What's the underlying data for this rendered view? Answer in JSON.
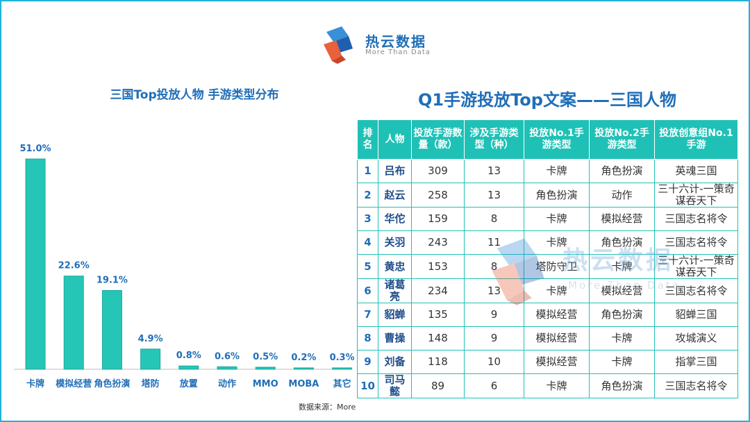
{
  "logo": {
    "name_cn": "热云数据",
    "name_en": "More Than Data"
  },
  "chart_data": {
    "type": "bar",
    "title": "三国Top投放人物 手游类型分布",
    "categories": [
      "卡牌",
      "模拟经营",
      "角色扮演",
      "塔防",
      "放置",
      "动作",
      "MMO",
      "MOBA",
      "其它"
    ],
    "values": [
      51.0,
      22.6,
      19.1,
      4.9,
      0.8,
      0.6,
      0.5,
      0.2,
      0.3
    ],
    "value_labels": [
      "51.0%",
      "22.6%",
      "19.1%",
      "4.9%",
      "0.8%",
      "0.6%",
      "0.5%",
      "0.2%",
      "0.3%"
    ],
    "ylim": [
      0,
      51
    ],
    "grid": false,
    "bar_color": "#26c6b7"
  },
  "source_label": "数据来源：More",
  "table": {
    "title": "Q1手游投放Top文案——三国人物",
    "headers": [
      "排名",
      "人物",
      "投放手游数量（款）",
      "涉及手游类型（种）",
      "投放No.1手游类型",
      "投放No.2手游类型",
      "投放创意组No.1手游"
    ],
    "rows": [
      [
        "1",
        "吕布",
        "309",
        "13",
        "卡牌",
        "角色扮演",
        "英魂三国"
      ],
      [
        "2",
        "赵云",
        "258",
        "13",
        "角色扮演",
        "动作",
        "三十六计-一策奇谋吞天下"
      ],
      [
        "3",
        "华佗",
        "159",
        "8",
        "卡牌",
        "模拟经营",
        "三国志名将令"
      ],
      [
        "4",
        "关羽",
        "243",
        "11",
        "卡牌",
        "角色扮演",
        "三国志名将令"
      ],
      [
        "5",
        "黄忠",
        "153",
        "8",
        "塔防守卫",
        "卡牌",
        "三十六计-一策奇谋吞天下"
      ],
      [
        "6",
        "诸葛亮",
        "234",
        "13",
        "卡牌",
        "模拟经营",
        "三国志名将令"
      ],
      [
        "7",
        "貂蝉",
        "135",
        "9",
        "模拟经营",
        "角色扮演",
        "貂蝉三国"
      ],
      [
        "8",
        "曹操",
        "148",
        "9",
        "模拟经营",
        "卡牌",
        "攻城演义"
      ],
      [
        "9",
        "刘备",
        "118",
        "10",
        "模拟经营",
        "卡牌",
        "指掌三国"
      ],
      [
        "10",
        "司马懿",
        "89",
        "6",
        "卡牌",
        "角色扮演",
        "三国志名将令"
      ]
    ]
  },
  "colors": {
    "accent": "#1f6eb8",
    "teal": "#1fc1b6",
    "border": "#1fb3d6"
  }
}
